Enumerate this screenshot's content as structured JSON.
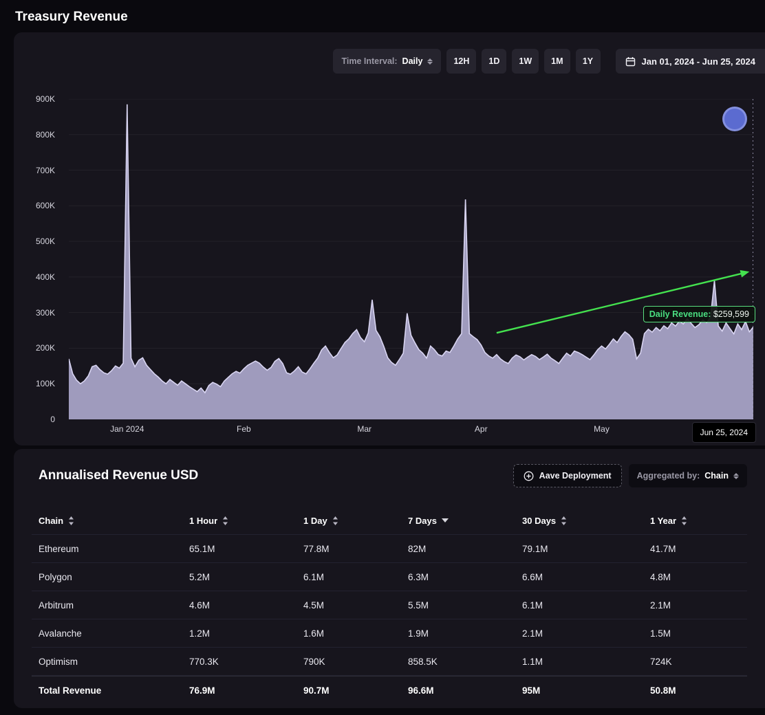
{
  "page": {
    "title": "Treasury Revenue"
  },
  "chart_panel": {
    "time_interval_label": "Time Interval:",
    "time_interval_value": "Daily",
    "interval_buttons": [
      "12H",
      "1D",
      "1W",
      "1M",
      "1Y"
    ],
    "date_range": "Jan 01, 2024 - Jun 25, 2024",
    "tooltip": {
      "label": "Daily Revenue:",
      "value": "$259,599"
    },
    "x_cursor_label": "Jun 25, 2024"
  },
  "chart_data": {
    "type": "area",
    "title": "Treasury Revenue (Daily, USD)",
    "x_start": "Jan 01, 2024",
    "x_end": "Jun 25, 2024",
    "ylim_thousands": [
      0,
      900
    ],
    "yticks": [
      "900K",
      "800K",
      "700K",
      "600K",
      "500K",
      "400K",
      "300K",
      "200K",
      "100K",
      "0"
    ],
    "xticks": [
      {
        "label": "Jan 2024",
        "day": 15
      },
      {
        "label": "Feb",
        "day": 45
      },
      {
        "label": "Mar",
        "day": 76
      },
      {
        "label": "Apr",
        "day": 106
      },
      {
        "label": "May",
        "day": 137
      }
    ],
    "values_in_thousands": [
      170,
      128,
      110,
      100,
      108,
      122,
      148,
      152,
      140,
      131,
      127,
      137,
      150,
      144,
      158,
      885,
      172,
      148,
      166,
      173,
      152,
      140,
      128,
      119,
      108,
      100,
      112,
      104,
      96,
      108,
      100,
      92,
      85,
      78,
      88,
      75,
      95,
      104,
      99,
      92,
      108,
      118,
      128,
      135,
      130,
      142,
      152,
      158,
      164,
      158,
      147,
      138,
      146,
      163,
      171,
      157,
      131,
      127,
      136,
      148,
      133,
      128,
      142,
      158,
      172,
      195,
      206,
      188,
      173,
      181,
      199,
      216,
      226,
      241,
      252,
      230,
      218,
      243,
      336,
      250,
      232,
      205,
      173,
      160,
      152,
      168,
      186,
      298,
      236,
      215,
      196,
      186,
      172,
      206,
      196,
      182,
      178,
      192,
      188,
      206,
      226,
      241,
      618,
      241,
      232,
      224,
      209,
      188,
      178,
      172,
      182,
      170,
      162,
      157,
      172,
      181,
      176,
      167,
      175,
      182,
      177,
      168,
      175,
      183,
      172,
      165,
      157,
      172,
      186,
      178,
      192,
      188,
      182,
      175,
      168,
      181,
      196,
      206,
      198,
      211,
      226,
      216,
      233,
      246,
      238,
      225,
      170,
      186,
      241,
      253,
      245,
      258,
      249,
      263,
      255,
      271,
      262,
      276,
      268,
      283,
      270,
      258,
      266,
      279,
      272,
      286,
      390,
      262,
      248,
      271,
      255,
      240,
      268,
      252,
      275,
      246,
      259.6
    ],
    "last_point_value": 259599,
    "annotations": {
      "trend_arrow": {
        "color": "#44e24f",
        "x1_day": 110,
        "y1_k": 243,
        "x2_day": 175,
        "y2_k": 415
      }
    },
    "colors": {
      "area_fill": "#a7a2c6",
      "line": "#d9d5f2",
      "grid": "rgba(255,255,255,0.055)",
      "crosshair": "#8a88a0",
      "tooltip_border": "#59e07f",
      "tooltip_label": "#4ade80"
    },
    "legend_position": "none",
    "grid": true
  },
  "table_panel": {
    "title": "Annualised Revenue USD",
    "aave_button": "Aave Deployment",
    "aggregated_by_label": "Aggregated by:",
    "aggregated_by_value": "Chain",
    "columns": [
      {
        "label": "Chain",
        "sort": "both"
      },
      {
        "label": "1 Hour",
        "sort": "both"
      },
      {
        "label": "1 Day",
        "sort": "both"
      },
      {
        "label": "7 Days",
        "sort": "down"
      },
      {
        "label": "30 Days",
        "sort": "both"
      },
      {
        "label": "1 Year",
        "sort": "both"
      }
    ],
    "rows": [
      {
        "chain": "Ethereum",
        "values": [
          "65.1M",
          "77.8M",
          "82M",
          "79.1M",
          "41.7M"
        ]
      },
      {
        "chain": "Polygon",
        "values": [
          "5.2M",
          "6.1M",
          "6.3M",
          "6.6M",
          "4.8M"
        ]
      },
      {
        "chain": "Arbitrum",
        "values": [
          "4.6M",
          "4.5M",
          "5.5M",
          "6.1M",
          "2.1M"
        ]
      },
      {
        "chain": "Avalanche",
        "values": [
          "1.2M",
          "1.6M",
          "1.9M",
          "2.1M",
          "1.5M"
        ]
      },
      {
        "chain": "Optimism",
        "values": [
          "770.3K",
          "790K",
          "858.5K",
          "1.1M",
          "724K"
        ]
      }
    ],
    "total_row": {
      "chain": "Total Revenue",
      "values": [
        "76.9M",
        "90.7M",
        "96.6M",
        "95M",
        "50.8M"
      ]
    }
  }
}
